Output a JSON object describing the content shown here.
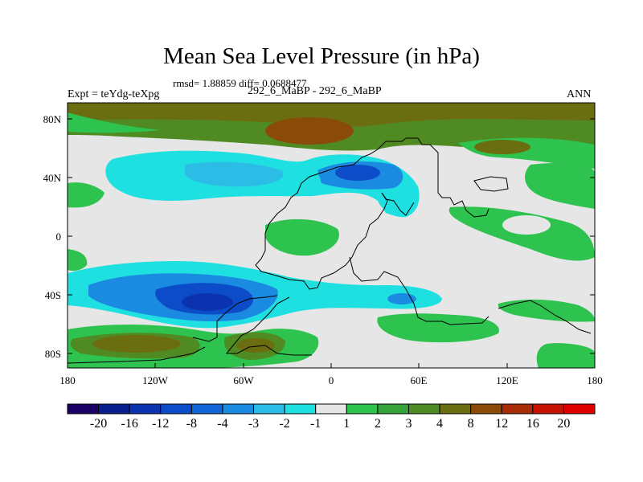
{
  "map": {
    "title": "Mean Sea Level Pressure (in hPa)",
    "stats": "rmsd= 1.88859 diff= 0.0688477",
    "expt": "Expt = teYdg-teXpg",
    "comparison": "292_6_MaBP - 292_6_MaBP",
    "season": "ANN",
    "lat_ticks": [
      "80N",
      "40N",
      "0",
      "40S",
      "80S"
    ],
    "lon_ticks": [
      "180",
      "120W",
      "60W",
      "0",
      "60E",
      "120E",
      "180"
    ]
  },
  "colorbar": {
    "labels": [
      "-20",
      "-16",
      "-12",
      "-8",
      "-4",
      "-3",
      "-2",
      "-1",
      "1",
      "2",
      "3",
      "4",
      "8",
      "12",
      "16",
      "20"
    ],
    "colors": [
      "#1a0066",
      "#0a1f8f",
      "#0b33b0",
      "#0d4cc8",
      "#1066d6",
      "#1a8be0",
      "#2cbde6",
      "#1fe0e0",
      "#e6e6e6",
      "#2ec24f",
      "#35a33a",
      "#4f8a22",
      "#6b6e10",
      "#8a4a08",
      "#a82c06",
      "#c81200",
      "#e00000"
    ]
  }
}
